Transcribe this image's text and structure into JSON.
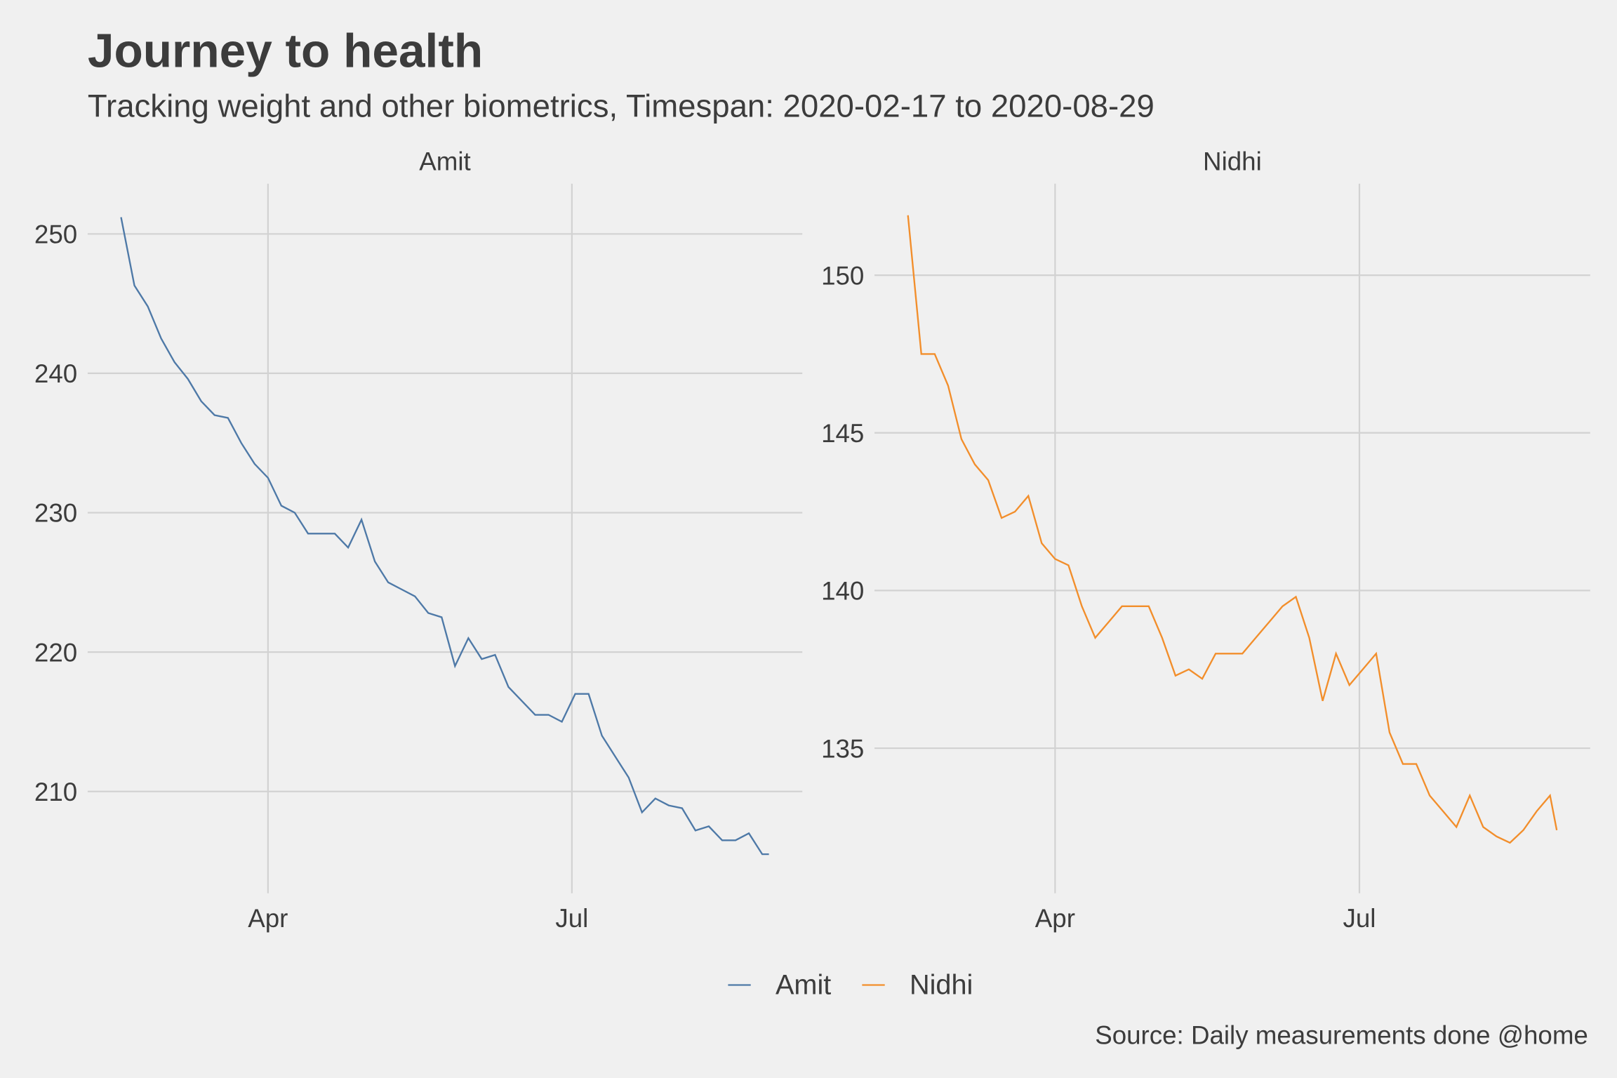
{
  "title": "Journey to health",
  "subtitle": "Tracking weight and other biometrics, Timespan: 2020-02-17 to 2020-08-29",
  "caption": "Source: Daily measurements done @home",
  "chart_data": [
    {
      "type": "line",
      "title": "Amit",
      "grid": true,
      "x": [
        "2020-02-17",
        "2020-02-21",
        "2020-02-25",
        "2020-02-29",
        "2020-03-04",
        "2020-03-08",
        "2020-03-12",
        "2020-03-16",
        "2020-03-20",
        "2020-03-24",
        "2020-03-28",
        "2020-04-01",
        "2020-04-05",
        "2020-04-09",
        "2020-04-13",
        "2020-04-17",
        "2020-04-21",
        "2020-04-25",
        "2020-04-29",
        "2020-05-03",
        "2020-05-07",
        "2020-05-11",
        "2020-05-15",
        "2020-05-19",
        "2020-05-23",
        "2020-05-27",
        "2020-05-31",
        "2020-06-04",
        "2020-06-08",
        "2020-06-12",
        "2020-06-16",
        "2020-06-20",
        "2020-06-24",
        "2020-06-28",
        "2020-07-02",
        "2020-07-06",
        "2020-07-10",
        "2020-07-14",
        "2020-07-18",
        "2020-07-22",
        "2020-07-26",
        "2020-07-30",
        "2020-08-03",
        "2020-08-07",
        "2020-08-11",
        "2020-08-15",
        "2020-08-19",
        "2020-08-23",
        "2020-08-27",
        "2020-08-29"
      ],
      "series": [
        {
          "name": "Amit",
          "color": "#4e79a7",
          "values": [
            251.2,
            246.3,
            244.8,
            242.5,
            240.8,
            239.6,
            238,
            237,
            236.8,
            235,
            233.5,
            232.5,
            230.5,
            230,
            228.5,
            228.5,
            228.5,
            227.5,
            229.5,
            226.5,
            225,
            224.5,
            224,
            222.8,
            222.5,
            219,
            221,
            219.5,
            219.8,
            217.5,
            216.5,
            215.5,
            215.5,
            215,
            217,
            217,
            214,
            212.5,
            211,
            208.5,
            209.5,
            209,
            208.8,
            207.2,
            207.5,
            206.5,
            206.5,
            207,
            205.5,
            205.5
          ]
        }
      ],
      "xlim": [
        "2020-02-07",
        "2020-09-08"
      ],
      "xticks": [
        {
          "value": "2020-04-01",
          "label": "Apr"
        },
        {
          "value": "2020-07-01",
          "label": "Jul"
        }
      ],
      "ylim": [
        202.7,
        253.6
      ],
      "yticks": [
        210,
        220,
        230,
        240,
        250
      ]
    },
    {
      "type": "line",
      "title": "Nidhi",
      "grid": true,
      "x": [
        "2020-02-17",
        "2020-02-21",
        "2020-02-25",
        "2020-02-29",
        "2020-03-04",
        "2020-03-08",
        "2020-03-12",
        "2020-03-16",
        "2020-03-20",
        "2020-03-24",
        "2020-03-28",
        "2020-04-01",
        "2020-04-05",
        "2020-04-09",
        "2020-04-13",
        "2020-04-17",
        "2020-04-21",
        "2020-04-25",
        "2020-04-29",
        "2020-05-03",
        "2020-05-07",
        "2020-05-11",
        "2020-05-15",
        "2020-05-19",
        "2020-05-23",
        "2020-05-27",
        "2020-05-31",
        "2020-06-04",
        "2020-06-08",
        "2020-06-12",
        "2020-06-16",
        "2020-06-20",
        "2020-06-24",
        "2020-06-28",
        "2020-07-02",
        "2020-07-06",
        "2020-07-10",
        "2020-07-14",
        "2020-07-18",
        "2020-07-22",
        "2020-07-26",
        "2020-07-30",
        "2020-08-03",
        "2020-08-07",
        "2020-08-11",
        "2020-08-15",
        "2020-08-19",
        "2020-08-23",
        "2020-08-27",
        "2020-08-29"
      ],
      "series": [
        {
          "name": "Nidhi",
          "color": "#f28e2b",
          "values": [
            151.9,
            147.5,
            147.5,
            146.5,
            144.8,
            144,
            143.5,
            142.3,
            142.5,
            143,
            141.5,
            141,
            140.8,
            139.5,
            138.5,
            139,
            139.5,
            139.5,
            139.5,
            138.5,
            137.3,
            137.5,
            137.2,
            138,
            138,
            138,
            138.5,
            139,
            139.5,
            139.8,
            138.5,
            136.5,
            138,
            137,
            137.5,
            138,
            135.5,
            134.5,
            134.5,
            133.5,
            133,
            132.5,
            133.5,
            132.5,
            132.2,
            132,
            132.4,
            133,
            133.5,
            132.4
          ]
        }
      ],
      "xlim": [
        "2020-02-07",
        "2020-09-08"
      ],
      "xticks": [
        {
          "value": "2020-04-01",
          "label": "Apr"
        },
        {
          "value": "2020-07-01",
          "label": "Jul"
        }
      ],
      "ylim": [
        130.4,
        152.9
      ],
      "yticks": [
        135,
        140,
        145,
        150
      ]
    }
  ]
}
